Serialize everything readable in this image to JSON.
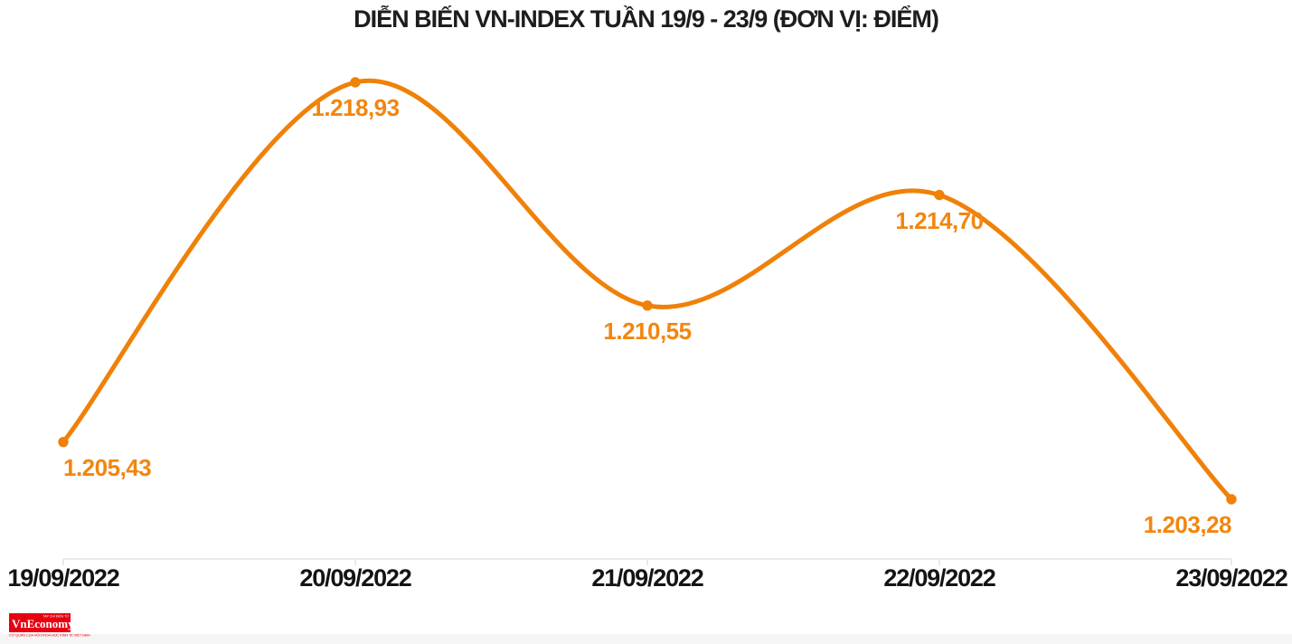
{
  "title": "DIỄN BIẾN VN-INDEX TUẦN 19/9 - 23/9 (ĐƠN VỊ: ĐIỂM)",
  "colors": {
    "line": "#ef8109",
    "point_label": "#f2860f",
    "title_text": "#1d1d1b",
    "axis": "#e4e4e4",
    "date_text": "#141414",
    "logo_red": "#e60012"
  },
  "chart_data": {
    "type": "line",
    "title": "DIỄN BIẾN VN-INDEX TUẦN 19/9 - 23/9 (ĐƠN VỊ: ĐIỂM)",
    "unit": "ĐIỂM",
    "categories": [
      "19/09/2022",
      "20/09/2022",
      "21/09/2022",
      "22/09/2022",
      "23/09/2022"
    ],
    "series": [
      {
        "name": "VN-INDEX",
        "values": [
          1205.43,
          1218.93,
          1210.55,
          1214.7,
          1203.28
        ]
      }
    ],
    "point_labels": [
      "1.205,43",
      "1.218,93",
      "1.210,55",
      "1.214,70",
      "1.203,28"
    ],
    "smooth": true,
    "grid": false,
    "legend": "none",
    "ylim": [
      1201.2,
      1222.0
    ]
  },
  "logo": {
    "top_text": "TẠP CHÍ ĐIỆN TỬ",
    "name": "VnEconomy",
    "tagline": "CƠ QUAN CỦA HỘI KHOA HỌC KINH TẾ VIỆT NAM"
  }
}
